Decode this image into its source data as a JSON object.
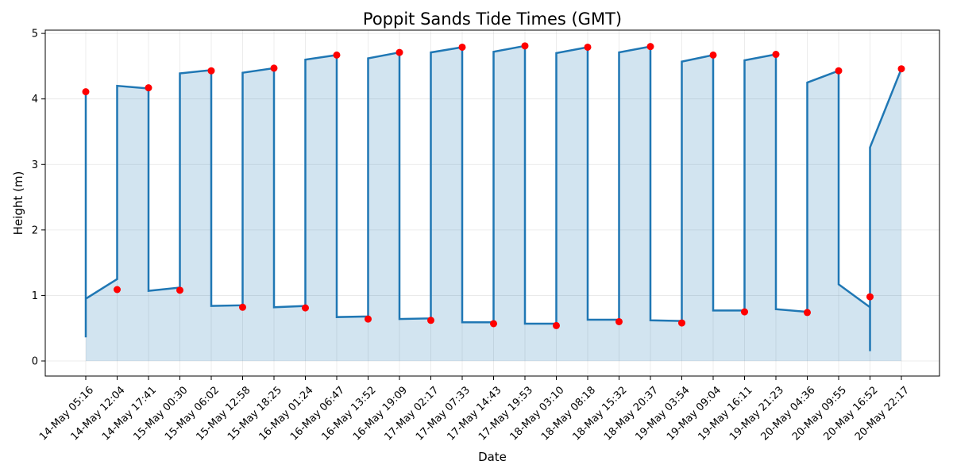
{
  "chart_data": {
    "type": "line",
    "title": "Poppit Sands Tide Times (GMT)",
    "xlabel": "Date",
    "ylabel": "Height (m)",
    "ylim": [
      -0.23,
      5.05
    ],
    "yticks": [
      0,
      1,
      2,
      3,
      4,
      5
    ],
    "grid": true,
    "fill_under_line": true,
    "colors": {
      "line": "#1f77b4",
      "fill": "#1f77b4",
      "points": "#ff0000",
      "grid": "#b0b0b0"
    },
    "categories": [
      "14-May 05:16",
      "14-May 12:04",
      "14-May 17:41",
      "15-May 00:30",
      "15-May 06:02",
      "15-May 12:58",
      "15-May 18:25",
      "16-May 01:24",
      "16-May 06:47",
      "16-May 13:52",
      "16-May 19:09",
      "17-May 02:17",
      "17-May 07:33",
      "17-May 14:43",
      "17-May 19:53",
      "18-May 03:10",
      "18-May 08:18",
      "18-May 15:32",
      "18-May 20:37",
      "19-May 03:54",
      "19-May 09:04",
      "19-May 16:11",
      "19-May 21:23",
      "20-May 04:36",
      "20-May 09:55",
      "20-May 16:52",
      "20-May 22:17"
    ],
    "tide_points": [
      4.11,
      1.09,
      4.17,
      1.08,
      4.43,
      0.82,
      4.47,
      0.81,
      4.67,
      0.64,
      4.71,
      0.62,
      4.79,
      0.57,
      4.81,
      0.54,
      4.79,
      0.6,
      4.8,
      0.58,
      4.67,
      0.75,
      4.68,
      0.74,
      4.43,
      0.98,
      4.46
    ],
    "line": [
      [
        0,
        0.36
      ],
      [
        0,
        4.11
      ],
      [
        0,
        0.95
      ],
      [
        1,
        1.25
      ],
      [
        1,
        4.2
      ],
      [
        2,
        4.16
      ],
      [
        2,
        1.07
      ],
      [
        3,
        1.12
      ],
      [
        3,
        4.39
      ],
      [
        4,
        4.44
      ],
      [
        4,
        0.84
      ],
      [
        5,
        0.85
      ],
      [
        5,
        4.4
      ],
      [
        6,
        4.47
      ],
      [
        6,
        0.82
      ],
      [
        7,
        0.84
      ],
      [
        7,
        4.6
      ],
      [
        8,
        4.67
      ],
      [
        8,
        0.67
      ],
      [
        9,
        0.68
      ],
      [
        9,
        4.62
      ],
      [
        10,
        4.71
      ],
      [
        10,
        0.64
      ],
      [
        11,
        0.65
      ],
      [
        11,
        4.71
      ],
      [
        12,
        4.79
      ],
      [
        12,
        0.59
      ],
      [
        13,
        0.59
      ],
      [
        13,
        4.72
      ],
      [
        14,
        4.81
      ],
      [
        14,
        0.57
      ],
      [
        15,
        0.57
      ],
      [
        15,
        4.7
      ],
      [
        16,
        4.79
      ],
      [
        16,
        0.63
      ],
      [
        17,
        0.63
      ],
      [
        17,
        4.71
      ],
      [
        18,
        4.8
      ],
      [
        18,
        0.62
      ],
      [
        19,
        0.61
      ],
      [
        19,
        4.57
      ],
      [
        20,
        4.67
      ],
      [
        20,
        0.77
      ],
      [
        21,
        0.77
      ],
      [
        21,
        4.59
      ],
      [
        22,
        4.68
      ],
      [
        22,
        0.79
      ],
      [
        23,
        0.75
      ],
      [
        23,
        4.25
      ],
      [
        24,
        4.43
      ],
      [
        24,
        1.17
      ],
      [
        25,
        0.82
      ],
      [
        25,
        0.15
      ],
      [
        25,
        3.26
      ],
      [
        26,
        4.46
      ]
    ]
  }
}
